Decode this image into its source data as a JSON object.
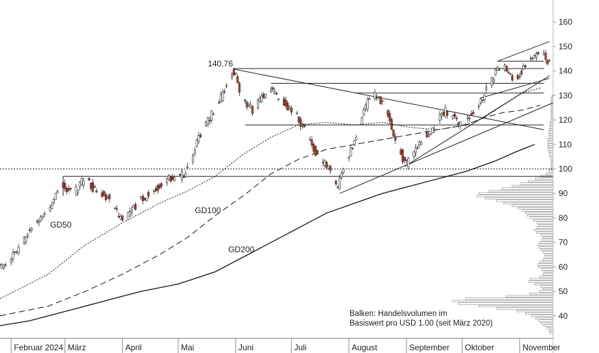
{
  "chart_data": {
    "type": "candlestick",
    "currency_note": "Balken: Handelsvolumen im Basiswert pro USD 1.00 (seit März 2020)",
    "note_lines": [
      "Balken: Handelsvolumen im",
      "Basiswert pro USD 1.00 (seit März 2020)"
    ],
    "x_axis": {
      "months": [
        {
          "label": "Februar 2024",
          "day": 0
        },
        {
          "label": "März",
          "day": 29
        },
        {
          "label": "April",
          "day": 60
        },
        {
          "label": "Mai",
          "day": 90
        },
        {
          "label": "Juni",
          "day": 121
        },
        {
          "label": "Juli",
          "day": 151
        },
        {
          "label": "August",
          "day": 182
        },
        {
          "label": "September",
          "day": 213
        },
        {
          "label": "Oktober",
          "day": 243
        },
        {
          "label": "November",
          "day": 274
        }
      ],
      "range_days": [
        -6,
        292
      ]
    },
    "y_axis": {
      "range": [
        31,
        169
      ],
      "ticks": [
        40,
        50,
        60,
        70,
        80,
        90,
        100,
        110,
        120,
        130,
        140,
        150,
        160
      ],
      "position": "right"
    },
    "price_path": [
      [
        -6,
        60
      ],
      [
        0,
        63
      ],
      [
        5,
        68
      ],
      [
        9,
        73
      ],
      [
        13,
        78
      ],
      [
        17,
        80
      ],
      [
        21,
        84
      ],
      [
        25,
        89
      ],
      [
        28,
        93
      ],
      [
        31,
        92
      ],
      [
        35,
        90
      ],
      [
        38,
        94
      ],
      [
        41,
        96
      ],
      [
        45,
        92
      ],
      [
        49,
        90
      ],
      [
        53,
        88
      ],
      [
        56,
        85
      ],
      [
        59,
        81
      ],
      [
        62,
        80
      ],
      [
        66,
        83
      ],
      [
        70,
        87
      ],
      [
        74,
        89
      ],
      [
        78,
        91
      ],
      [
        82,
        94
      ],
      [
        85,
        96
      ],
      [
        89,
        96
      ],
      [
        94,
        98
      ],
      [
        98,
        104
      ],
      [
        102,
        113
      ],
      [
        106,
        118
      ],
      [
        110,
        124
      ],
      [
        114,
        129
      ],
      [
        117,
        134
      ],
      [
        120,
        140
      ],
      [
        122,
        138
      ],
      [
        125,
        130
      ],
      [
        128,
        126
      ],
      [
        131,
        124
      ],
      [
        134,
        127
      ],
      [
        137,
        130
      ],
      [
        140,
        133
      ],
      [
        143,
        131
      ],
      [
        146,
        128
      ],
      [
        149,
        126
      ],
      [
        152,
        124
      ],
      [
        155,
        122
      ],
      [
        158,
        117
      ],
      [
        162,
        112
      ],
      [
        166,
        105
      ],
      [
        170,
        102
      ],
      [
        173,
        100
      ],
      [
        175,
        96
      ],
      [
        177,
        92
      ],
      [
        179,
        99
      ],
      [
        182,
        104
      ],
      [
        185,
        109
      ],
      [
        188,
        117
      ],
      [
        191,
        124
      ],
      [
        194,
        129
      ],
      [
        197,
        130
      ],
      [
        200,
        128
      ],
      [
        203,
        124
      ],
      [
        206,
        116
      ],
      [
        209,
        111
      ],
      [
        212,
        104
      ],
      [
        214,
        102
      ],
      [
        217,
        105
      ],
      [
        220,
        110
      ],
      [
        223,
        113
      ],
      [
        226,
        115
      ],
      [
        229,
        118
      ],
      [
        232,
        121
      ],
      [
        235,
        124
      ],
      [
        238,
        122
      ],
      [
        241,
        119
      ],
      [
        244,
        118
      ],
      [
        247,
        120
      ],
      [
        250,
        123
      ],
      [
        253,
        127
      ],
      [
        256,
        131
      ],
      [
        259,
        135
      ],
      [
        262,
        139
      ],
      [
        265,
        142
      ],
      [
        268,
        141
      ],
      [
        271,
        137
      ],
      [
        274,
        138
      ],
      [
        277,
        141
      ],
      [
        280,
        144
      ],
      [
        283,
        146
      ],
      [
        286,
        149
      ],
      [
        288,
        147
      ],
      [
        290,
        143
      ]
    ],
    "moving_averages": [
      {
        "name": "GD50",
        "style": "dotted",
        "points": [
          [
            -6,
            47
          ],
          [
            20,
            57
          ],
          [
            40,
            69
          ],
          [
            60,
            78
          ],
          [
            80,
            86
          ],
          [
            95,
            91
          ],
          [
            110,
            97
          ],
          [
            125,
            106
          ],
          [
            140,
            113
          ],
          [
            155,
            118
          ],
          [
            170,
            119
          ],
          [
            185,
            118
          ],
          [
            200,
            119
          ],
          [
            215,
            117
          ],
          [
            230,
            116
          ],
          [
            245,
            118
          ],
          [
            255,
            121
          ],
          [
            265,
            126
          ],
          [
            275,
            131
          ],
          [
            285,
            133
          ]
        ]
      },
      {
        "name": "GD100",
        "style": "dashed",
        "points": [
          [
            -6,
            40
          ],
          [
            20,
            44
          ],
          [
            40,
            50
          ],
          [
            60,
            57
          ],
          [
            80,
            65
          ],
          [
            95,
            72
          ],
          [
            110,
            81
          ],
          [
            125,
            89
          ],
          [
            140,
            98
          ],
          [
            155,
            104
          ],
          [
            170,
            108
          ],
          [
            185,
            110
          ],
          [
            200,
            112
          ],
          [
            215,
            114
          ],
          [
            230,
            116
          ],
          [
            245,
            118
          ],
          [
            255,
            121
          ],
          [
            265,
            123
          ],
          [
            275,
            124
          ],
          [
            285,
            126
          ]
        ]
      },
      {
        "name": "GD200",
        "style": "solid",
        "points": [
          [
            -6,
            36
          ],
          [
            10,
            38
          ],
          [
            25,
            41
          ],
          [
            40,
            44
          ],
          [
            55,
            47
          ],
          [
            70,
            50
          ],
          [
            90,
            53
          ],
          [
            110,
            58
          ],
          [
            130,
            66
          ],
          [
            150,
            74
          ],
          [
            170,
            82
          ],
          [
            185,
            86
          ],
          [
            200,
            90
          ],
          [
            215,
            93
          ],
          [
            230,
            96
          ],
          [
            245,
            99
          ],
          [
            260,
            103
          ],
          [
            272,
            107
          ],
          [
            282,
            110
          ]
        ]
      }
    ],
    "levels": [
      {
        "type": "dotted",
        "value": 100,
        "from_day": -6,
        "to_day": 292
      },
      {
        "value": 97,
        "from_day": 28,
        "to_day": 292
      },
      {
        "value": 118,
        "from_day": 126,
        "to_day": 287
      },
      {
        "value": 131,
        "from_day": 185,
        "to_day": 287
      },
      {
        "value": 135,
        "from_day": 140,
        "to_day": 287
      },
      {
        "value": 141,
        "from_day": 120,
        "to_day": 287
      },
      {
        "value": 144,
        "from_day": 262,
        "to_day": 287
      }
    ],
    "trend_lines": [
      {
        "from": [
          120,
          140.76
        ],
        "to": [
          287,
          116
        ]
      },
      {
        "from": [
          177,
          90
        ],
        "to": [
          292,
          127
        ]
      },
      {
        "from": [
          212,
          101
        ],
        "to": [
          290,
          138
        ]
      },
      {
        "from": [
          253,
          129
        ],
        "to": [
          290,
          137
        ]
      },
      {
        "from": [
          262,
          144
        ],
        "to": [
          290,
          152
        ]
      }
    ],
    "annotations": [
      {
        "text": "140.76",
        "day": 120,
        "value": 140.76
      },
      {
        "text": "GD50",
        "day": 21,
        "value": 76
      },
      {
        "text": "GD100",
        "day": 99,
        "value": 82
      },
      {
        "text": "GD200",
        "day": 117,
        "value": 66
      }
    ],
    "volume_profile": {
      "description": "horizontal volume-by-price bars along right edge",
      "bins": [
        [
          33,
          0.03
        ],
        [
          34,
          0.04
        ],
        [
          35,
          0.06
        ],
        [
          36,
          0.09
        ],
        [
          37,
          0.12
        ],
        [
          38,
          0.14
        ],
        [
          39,
          0.17
        ],
        [
          40,
          0.21
        ],
        [
          41,
          0.27
        ],
        [
          42,
          0.35
        ],
        [
          43,
          0.55
        ],
        [
          44,
          0.72
        ],
        [
          45,
          0.92
        ],
        [
          46,
          0.98
        ],
        [
          47,
          0.85
        ],
        [
          48,
          0.46
        ],
        [
          49,
          0.23
        ],
        [
          50,
          0.13
        ],
        [
          51,
          0.1
        ],
        [
          52,
          0.12
        ],
        [
          53,
          0.18
        ],
        [
          54,
          0.24
        ],
        [
          55,
          0.22
        ],
        [
          56,
          0.13
        ],
        [
          57,
          0.1
        ],
        [
          58,
          0.09
        ],
        [
          59,
          0.11
        ],
        [
          60,
          0.14
        ],
        [
          61,
          0.15
        ],
        [
          62,
          0.13
        ],
        [
          63,
          0.1
        ],
        [
          64,
          0.08
        ],
        [
          65,
          0.08
        ],
        [
          66,
          0.1
        ],
        [
          67,
          0.12
        ],
        [
          68,
          0.14
        ],
        [
          69,
          0.15
        ],
        [
          70,
          0.13
        ],
        [
          71,
          0.11
        ],
        [
          72,
          0.1
        ],
        [
          73,
          0.12
        ],
        [
          74,
          0.16
        ],
        [
          75,
          0.18
        ],
        [
          76,
          0.16
        ],
        [
          77,
          0.14
        ],
        [
          78,
          0.16
        ],
        [
          79,
          0.19
        ],
        [
          80,
          0.22
        ],
        [
          81,
          0.25
        ],
        [
          82,
          0.27
        ],
        [
          83,
          0.3
        ],
        [
          84,
          0.34
        ],
        [
          85,
          0.4
        ],
        [
          86,
          0.48
        ],
        [
          87,
          0.55
        ],
        [
          88,
          0.66
        ],
        [
          89,
          0.74
        ],
        [
          90,
          0.72
        ],
        [
          91,
          0.62
        ],
        [
          92,
          0.5
        ],
        [
          93,
          0.4
        ],
        [
          94,
          0.32
        ],
        [
          95,
          0.24
        ],
        [
          96,
          0.17
        ],
        [
          97,
          0.12
        ],
        [
          98,
          0.07
        ],
        [
          99,
          0.04
        ],
        [
          100,
          0.03
        ],
        [
          101,
          0.02
        ],
        [
          102,
          0.02
        ],
        [
          103,
          0.02
        ],
        [
          104,
          0.02
        ],
        [
          105,
          0.03
        ],
        [
          106,
          0.04
        ],
        [
          107,
          0.04
        ],
        [
          108,
          0.05
        ],
        [
          109,
          0.05
        ],
        [
          110,
          0.05
        ],
        [
          111,
          0.05
        ],
        [
          112,
          0.05
        ],
        [
          113,
          0.04
        ],
        [
          114,
          0.04
        ],
        [
          115,
          0.04
        ],
        [
          116,
          0.04
        ],
        [
          117,
          0.03
        ],
        [
          118,
          0.03
        ],
        [
          119,
          0.03
        ],
        [
          120,
          0.02
        ],
        [
          121,
          0.02
        ],
        [
          122,
          0.02
        ],
        [
          123,
          0.02
        ],
        [
          124,
          0.02
        ],
        [
          125,
          0.02
        ],
        [
          126,
          0.02
        ],
        [
          127,
          0.02
        ],
        [
          128,
          0.02
        ],
        [
          129,
          0.02
        ],
        [
          130,
          0.01
        ]
      ]
    }
  }
}
